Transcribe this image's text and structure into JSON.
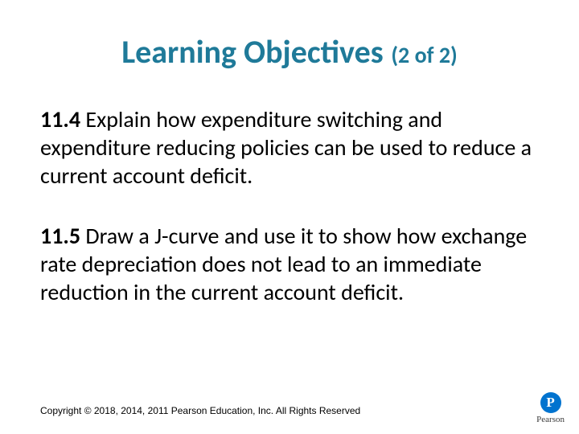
{
  "title": {
    "main": "Learning Objectives",
    "sub": "(2 of 2)"
  },
  "objectives": [
    {
      "num": "11.4",
      "text": "  Explain how expenditure switching and expenditure reducing policies can be used to reduce a current account deficit."
    },
    {
      "num": "11.5",
      "text": "  Draw a J-curve and use it to show how exchange rate depreciation does not lead to an immediate reduction in the current account deficit."
    }
  ],
  "footer": "Copyright © 2018, 2014, 2011 Pearson Education, Inc. All Rights Reserved",
  "logo": {
    "letter": "P",
    "brand": "Pearson",
    "circle_color": "#0073cf",
    "letter_color": "#ffffff"
  },
  "colors": {
    "title": "#1f7a99",
    "body": "#000000",
    "background": "#ffffff"
  },
  "fonts": {
    "title_size_pt": 40,
    "subtitle_size_pt": 28,
    "body_size_pt": 28,
    "footer_size_pt": 12
  }
}
